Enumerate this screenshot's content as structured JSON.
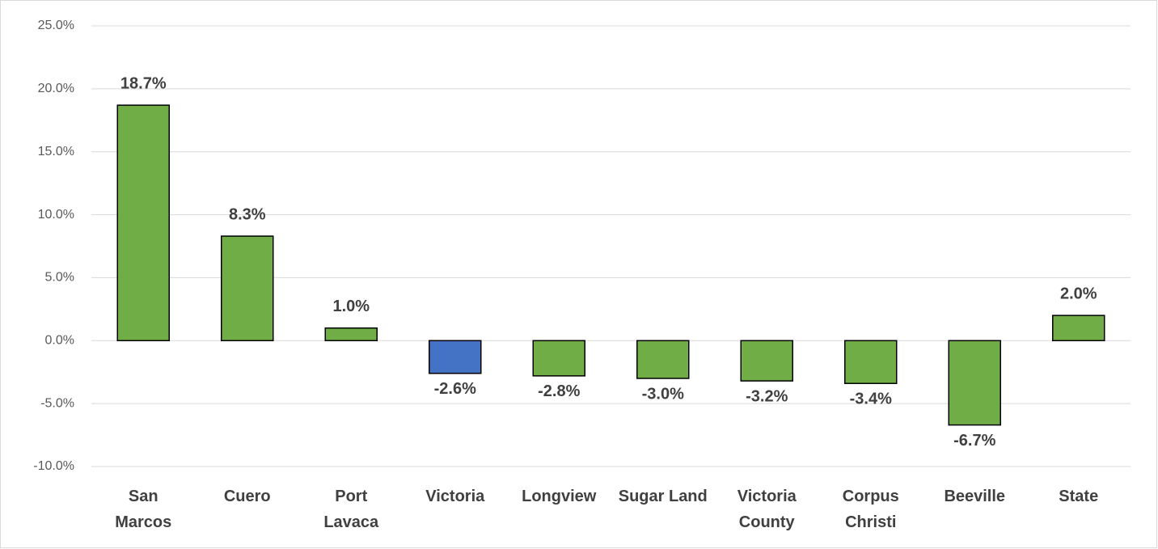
{
  "chart_data": {
    "type": "bar",
    "categories": [
      [
        "San",
        "Marcos"
      ],
      [
        "Cuero"
      ],
      [
        "Port",
        "Lavaca"
      ],
      [
        "Victoria"
      ],
      [
        "Longview"
      ],
      [
        "Sugar Land"
      ],
      [
        "Victoria",
        "County"
      ],
      [
        "Corpus",
        "Christi"
      ],
      [
        "Beeville"
      ],
      [
        "State"
      ]
    ],
    "values": [
      18.7,
      8.3,
      1.0,
      -2.6,
      -2.8,
      -3.0,
      -3.2,
      -3.4,
      -6.7,
      2.0
    ],
    "value_labels": [
      "18.7%",
      "8.3%",
      "1.0%",
      "-2.6%",
      "-2.8%",
      "-3.0%",
      "-3.2%",
      "-3.4%",
      "-6.7%",
      "2.0%"
    ],
    "colors": [
      "#70ad47",
      "#70ad47",
      "#70ad47",
      "#4472c4",
      "#70ad47",
      "#70ad47",
      "#70ad47",
      "#70ad47",
      "#70ad47",
      "#70ad47"
    ],
    "ylim": [
      -10,
      25
    ],
    "yticks": [
      {
        "value": -10,
        "label": "-10.0%"
      },
      {
        "value": -5,
        "label": "-5.0%"
      },
      {
        "value": 0,
        "label": "0.0%"
      },
      {
        "value": 5,
        "label": "5.0%"
      },
      {
        "value": 10,
        "label": "10.0%"
      },
      {
        "value": 15,
        "label": "15.0%"
      },
      {
        "value": 20,
        "label": "20.0%"
      },
      {
        "value": 25,
        "label": "25.0%"
      }
    ],
    "grid": true
  }
}
